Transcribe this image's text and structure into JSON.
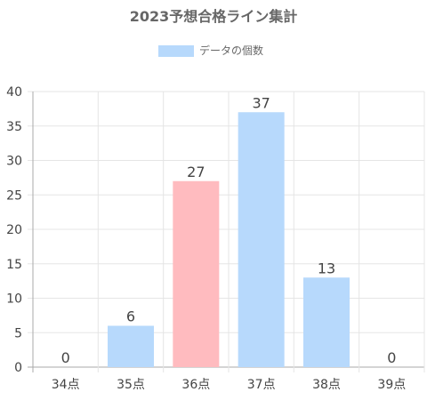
{
  "chart_data": {
    "type": "bar",
    "title": "2023予想合格ライン集計",
    "legend": {
      "label": "データの個数",
      "position": "top-center",
      "color": "#b7d9fc"
    },
    "categories": [
      "34点",
      "35点",
      "36点",
      "37点",
      "38点",
      "39点"
    ],
    "series": [
      {
        "name": "データの個数",
        "values": [
          0,
          6,
          27,
          37,
          13,
          0
        ]
      }
    ],
    "bar_colors": [
      "#b7d9fc",
      "#b7d9fc",
      "#ffbbbf",
      "#b7d9fc",
      "#b7d9fc",
      "#b7d9fc"
    ],
    "highlight_category": "36点",
    "highlight_color": "#ffbbbf",
    "ylim": [
      0,
      40
    ],
    "y_ticks": [
      "0",
      "5",
      "10",
      "15",
      "20",
      "25",
      "30",
      "35",
      "40"
    ],
    "grid": true,
    "xlabel": "",
    "ylabel": ""
  }
}
